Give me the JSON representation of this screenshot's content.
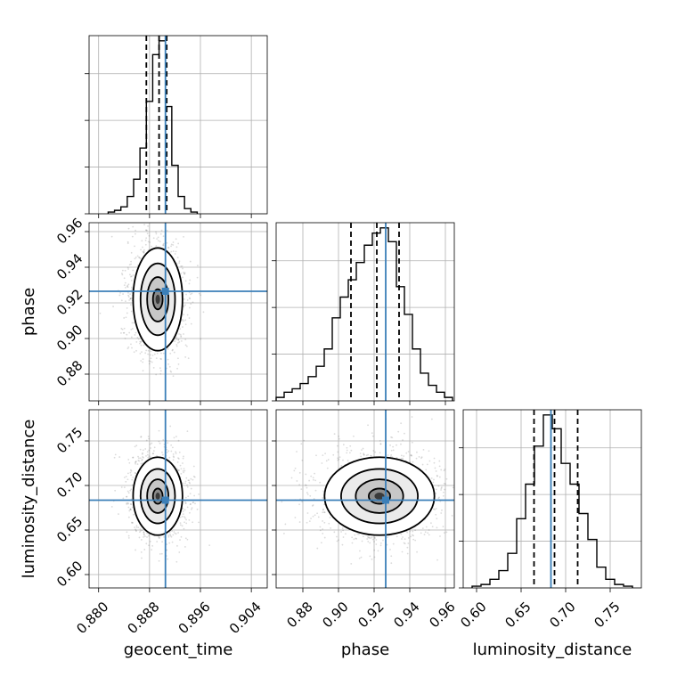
{
  "chart_data": {
    "type": "corner",
    "parameters": [
      {
        "key": "geocent_time",
        "label": "geocent_time",
        "range": [
          0.8785,
          0.9065
        ],
        "ticks": [
          0.88,
          0.888,
          0.896,
          0.904
        ],
        "tick_labels": [
          "0.880",
          "0.888",
          "0.896",
          "0.904"
        ],
        "truth": 0.8905,
        "quantiles": [
          0.8875,
          0.8895,
          0.8907
        ],
        "hist": {
          "edges": [
            0.8815,
            0.8825,
            0.8835,
            0.8845,
            0.8855,
            0.8865,
            0.8875,
            0.8885,
            0.8895,
            0.8905,
            0.8915,
            0.8925,
            0.8935,
            0.8945,
            0.8955
          ],
          "counts": [
            0.01,
            0.02,
            0.04,
            0.1,
            0.2,
            0.38,
            0.65,
            0.92,
            1.0,
            0.62,
            0.28,
            0.1,
            0.03,
            0.01
          ]
        }
      },
      {
        "key": "phase",
        "label": "phase",
        "range": [
          0.865,
          0.965
        ],
        "ticks": [
          0.88,
          0.9,
          0.92,
          0.94,
          0.96
        ],
        "tick_labels": [
          "0.88",
          "0.90",
          "0.92",
          "0.94",
          "0.96"
        ],
        "truth": 0.9265,
        "quantiles": [
          0.907,
          0.9215,
          0.934
        ],
        "hist": {
          "edges": [
            0.865,
            0.8695,
            0.874,
            0.8785,
            0.883,
            0.8875,
            0.892,
            0.8965,
            0.901,
            0.9055,
            0.91,
            0.9145,
            0.919,
            0.9235,
            0.928,
            0.9325,
            0.937,
            0.9415,
            0.946,
            0.9505,
            0.955,
            0.9595,
            0.964
          ],
          "counts": [
            0.02,
            0.05,
            0.07,
            0.1,
            0.14,
            0.2,
            0.3,
            0.48,
            0.6,
            0.7,
            0.8,
            0.9,
            0.97,
            1.0,
            0.92,
            0.66,
            0.5,
            0.3,
            0.16,
            0.09,
            0.05,
            0.02
          ]
        }
      },
      {
        "key": "luminosity_distance",
        "label": "luminosity_distance",
        "range": [
          0.585,
          0.785
        ],
        "ticks": [
          0.6,
          0.65,
          0.7,
          0.75
        ],
        "tick_labels": [
          "0.60",
          "0.65",
          "0.70",
          "0.75"
        ],
        "truth": 0.6835,
        "quantiles": [
          0.6645,
          0.6875,
          0.7135
        ],
        "hist": {
          "edges": [
            0.595,
            0.605,
            0.615,
            0.625,
            0.635,
            0.645,
            0.655,
            0.665,
            0.675,
            0.685,
            0.695,
            0.705,
            0.715,
            0.725,
            0.735,
            0.745,
            0.755,
            0.765,
            0.775
          ],
          "counts": [
            0.01,
            0.02,
            0.05,
            0.1,
            0.2,
            0.4,
            0.6,
            0.82,
            1.0,
            0.92,
            0.72,
            0.6,
            0.43,
            0.28,
            0.12,
            0.05,
            0.02,
            0.01
          ]
        }
      }
    ],
    "hist_yticks": [
      0.0,
      0.27,
      0.54,
      0.81
    ],
    "density": [
      {
        "x": "geocent_time",
        "y": "phase",
        "mean": [
          0.8893,
          0.922
        ],
        "sigma": [
          0.00195,
          0.0145
        ],
        "levels": [
          0.39,
          0.86,
          1.39,
          1.99
        ]
      },
      {
        "x": "geocent_time",
        "y": "luminosity_distance",
        "mean": [
          0.8893,
          0.688
        ],
        "sigma": [
          0.00195,
          0.022
        ],
        "levels": [
          0.39,
          0.86,
          1.39,
          1.99
        ]
      },
      {
        "x": "phase",
        "y": "luminosity_distance",
        "mean": [
          0.923,
          0.688
        ],
        "sigma": [
          0.0155,
          0.022
        ],
        "levels": [
          0.39,
          0.86,
          1.39,
          1.99
        ]
      }
    ],
    "grid": true,
    "colors": {
      "truth": "#3b7fb8",
      "line": "#000000",
      "grid": "#b0b0b0",
      "points": "#5a5a5a"
    }
  }
}
